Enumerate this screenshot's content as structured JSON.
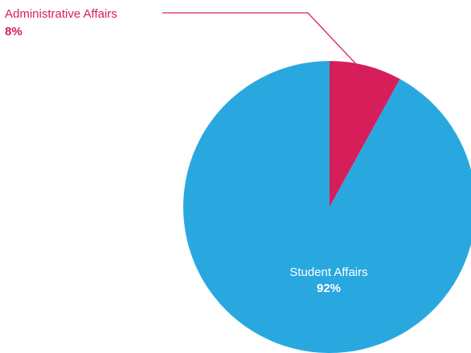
{
  "chart_data": {
    "type": "pie",
    "slices": [
      {
        "label": "Administrative Affairs",
        "value": 8,
        "value_label": "8%",
        "color": "#d61e5a"
      },
      {
        "label": "Student Affairs",
        "value": 92,
        "value_label": "92%",
        "color": "#29a8e0"
      }
    ]
  }
}
